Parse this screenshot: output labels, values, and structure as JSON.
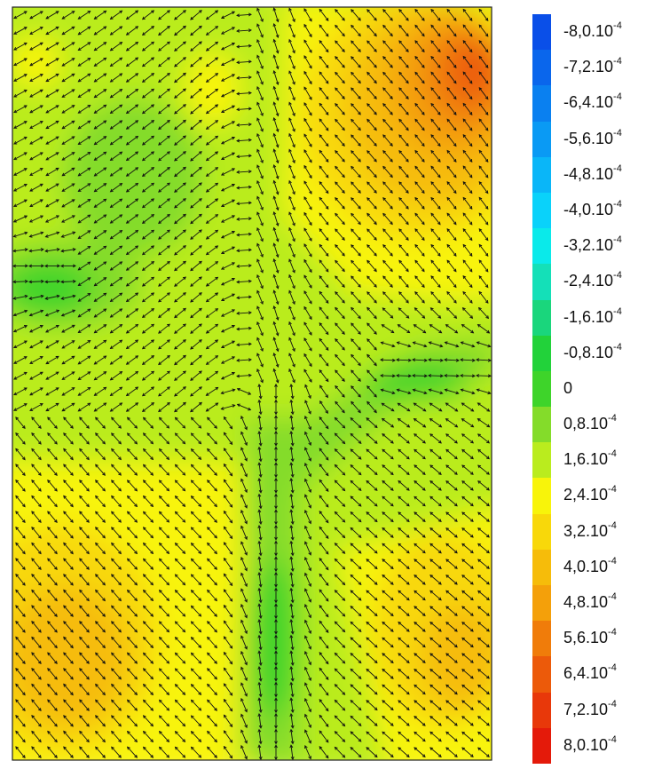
{
  "chart_data": {
    "type": "heatmap",
    "title": "",
    "xlabel": "",
    "ylabel": "",
    "overlay": "vector field arrows",
    "grid": false,
    "colorbar": {
      "placement": "right",
      "levels": [
        {
          "mant": "-8,0.10",
          "exp": "-4",
          "value": -0.0008,
          "color": "#0a4fe8"
        },
        {
          "mant": "-7,2.10",
          "exp": "-4",
          "value": -0.00072,
          "color": "#0a66ec"
        },
        {
          "mant": "-6,4.10",
          "exp": "-4",
          "value": -0.00064,
          "color": "#0a80f0"
        },
        {
          "mant": "-5,6.10",
          "exp": "-4",
          "value": -0.00056,
          "color": "#0a9af4"
        },
        {
          "mant": "-4,8.10",
          "exp": "-4",
          "value": -0.00048,
          "color": "#0ab6f8"
        },
        {
          "mant": "-4,0.10",
          "exp": "-4",
          "value": -0.0004,
          "color": "#0ad2fa"
        },
        {
          "mant": "-3,2.10",
          "exp": "-4",
          "value": -0.00032,
          "color": "#0aeaea"
        },
        {
          "mant": "-2,4.10",
          "exp": "-4",
          "value": -0.00024,
          "color": "#14e0b8"
        },
        {
          "mant": "-1,6.10",
          "exp": "-4",
          "value": -0.00016,
          "color": "#1ad67c"
        },
        {
          "mant": "-0,8.10",
          "exp": "-4",
          "value": -8e-05,
          "color": "#22d23a"
        },
        {
          "mant": "0",
          "exp": "",
          "value": 0,
          "color": "#3ed42a"
        },
        {
          "mant": "0,8.10",
          "exp": "-4",
          "value": 8e-05,
          "color": "#84dc2a"
        },
        {
          "mant": "1,6.10",
          "exp": "-4",
          "value": 0.00016,
          "color": "#baec1e"
        },
        {
          "mant": "2,4.10",
          "exp": "-4",
          "value": 0.00024,
          "color": "#f8f40a"
        },
        {
          "mant": "3,2.10",
          "exp": "-4",
          "value": 0.00032,
          "color": "#f8d80a"
        },
        {
          "mant": "4,0.10",
          "exp": "-4",
          "value": 0.0004,
          "color": "#f6bc0a"
        },
        {
          "mant": "4,8.10",
          "exp": "-4",
          "value": 0.00048,
          "color": "#f4a00a"
        },
        {
          "mant": "5,6.10",
          "exp": "-4",
          "value": 0.00056,
          "color": "#f07c0a"
        },
        {
          "mant": "6,4.10",
          "exp": "-4",
          "value": 0.00064,
          "color": "#ec5a0a"
        },
        {
          "mant": "7,2.10",
          "exp": "-4",
          "value": 0.00072,
          "color": "#e8380a"
        },
        {
          "mant": "8,0.10",
          "exp": "-4",
          "value": 0.0008,
          "color": "#e41a0a"
        }
      ]
    }
  }
}
